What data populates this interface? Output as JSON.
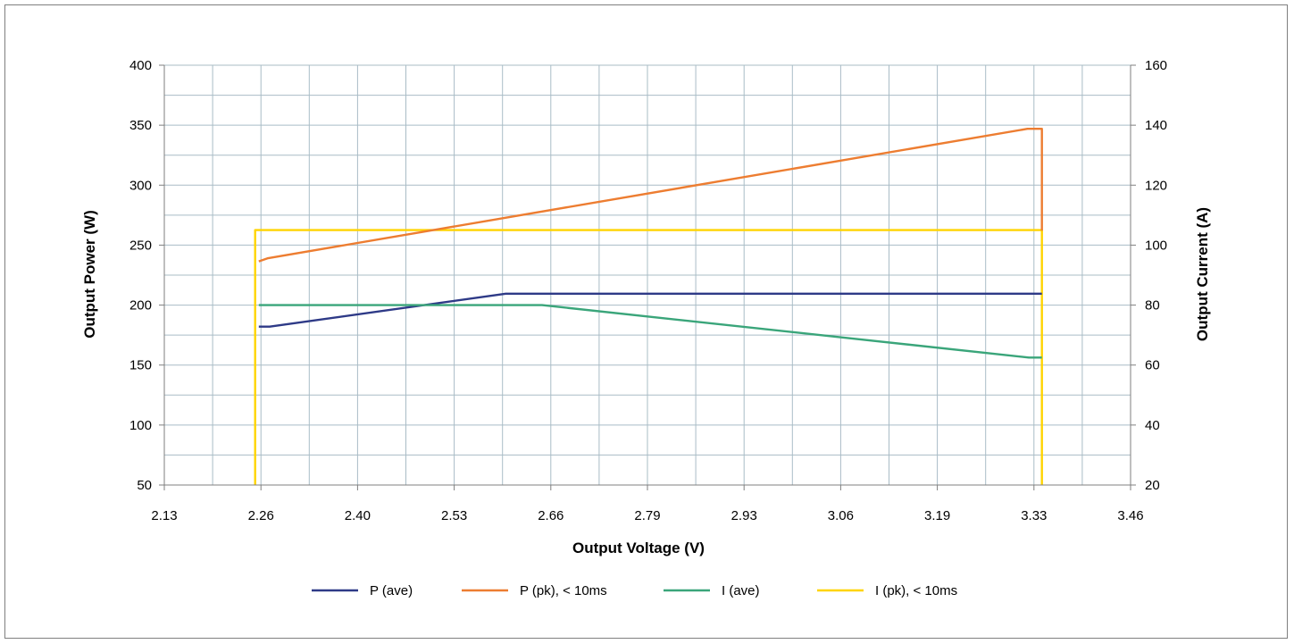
{
  "chart_data": {
    "type": "line",
    "title": "",
    "xlabel": "Output Voltage (V)",
    "ylabel": "Output Power (W)",
    "y2label": "Output Current (A)",
    "xlim": [
      2.13,
      3.46
    ],
    "ylim": [
      50,
      400
    ],
    "y2lim": [
      20,
      160
    ],
    "x_ticks": [
      "2.13",
      "2.26",
      "2.40",
      "2.53",
      "2.66",
      "2.79",
      "2.93",
      "3.06",
      "3.19",
      "3.33",
      "3.46"
    ],
    "y_ticks": [
      "50",
      "100",
      "150",
      "200",
      "250",
      "300",
      "350",
      "400"
    ],
    "y2_ticks": [
      "20",
      "40",
      "60",
      "80",
      "100",
      "120",
      "140",
      "160"
    ],
    "grid": true,
    "legend_position": "bottom",
    "series": [
      {
        "name": "P (ave)",
        "color": "#2e3a87",
        "axis": "left",
        "points": [
          [
            2.26,
            182
          ],
          [
            2.275,
            182
          ],
          [
            2.6,
            209.5
          ],
          [
            3.338,
            209.5
          ]
        ]
      },
      {
        "name": "P (pk), < 10ms",
        "color": "#ed7d31",
        "axis": "left",
        "points": [
          [
            2.26,
            236.5
          ],
          [
            2.272,
            239
          ],
          [
            3.318,
            347
          ],
          [
            3.338,
            347
          ],
          [
            3.338,
            262
          ]
        ]
      },
      {
        "name": "I (ave)",
        "color": "#3aa57a",
        "axis": "right",
        "points": [
          [
            2.26,
            80
          ],
          [
            2.65,
            80
          ],
          [
            3.32,
            62.5
          ],
          [
            3.338,
            62.5
          ]
        ]
      },
      {
        "name": "I (pk), < 10ms",
        "color": "#ffd400",
        "axis": "right",
        "points": [
          [
            2.255,
            20
          ],
          [
            2.255,
            105
          ],
          [
            3.338,
            105
          ],
          [
            3.338,
            20
          ]
        ]
      }
    ]
  }
}
